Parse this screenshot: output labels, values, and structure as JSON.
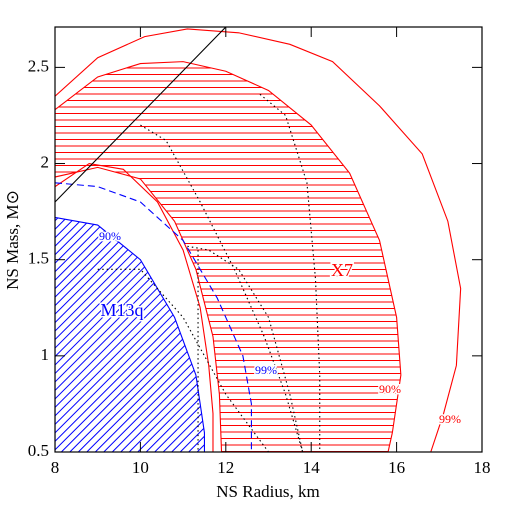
{
  "chart_data": {
    "type": "line",
    "xlabel": "NS Radius, km",
    "ylabel": "NS Mass, M⊙",
    "xlim": [
      8,
      18
    ],
    "ylim": [
      0.5,
      2.71
    ],
    "xticks": [
      8,
      10,
      12,
      14,
      16,
      18
    ],
    "yticks": [
      0.5,
      1,
      1.5,
      2,
      2.5
    ],
    "series": [
      {
        "color": "#ff0000",
        "dash": "solid",
        "hatch": "horizontal",
        "closed": true,
        "x": [
          8,
          9,
          10,
          11,
          12,
          13,
          14,
          14.9,
          15.6,
          16.0,
          16.1,
          15.9,
          15.8,
          11.9,
          11.85,
          11.7,
          11.3,
          10.8,
          10,
          9,
          8
        ],
        "y": [
          2.28,
          2.45,
          2.52,
          2.53,
          2.48,
          2.38,
          2.2,
          1.95,
          1.6,
          1.2,
          0.9,
          0.6,
          0.5,
          0.5,
          0.8,
          1.1,
          1.45,
          1.7,
          1.92,
          1.98,
          1.93
        ]
      },
      {
        "color": "#ff0000",
        "dash": "solid",
        "hatch": "none",
        "closed": false,
        "x": [
          8,
          9,
          10.1,
          11.1,
          12.3,
          13.5,
          14.5,
          15.6,
          16.6,
          17.2,
          17.5,
          17.4,
          17.1,
          16.8
        ],
        "y": [
          2.35,
          2.55,
          2.66,
          2.7,
          2.68,
          2.62,
          2.53,
          2.3,
          2.05,
          1.7,
          1.35,
          0.95,
          0.7,
          0.5
        ]
      },
      {
        "color": "#ff0000",
        "dash": "solid",
        "hatch": "none",
        "closed": false,
        "x": [
          8,
          8.8,
          9.6,
          10.4,
          11.0,
          11.4,
          11.6,
          11.7,
          11.7
        ],
        "y": [
          1.88,
          2.0,
          1.97,
          1.8,
          1.55,
          1.25,
          0.95,
          0.7,
          0.5
        ]
      },
      {
        "color": "#0000ff",
        "dash": "solid",
        "hatch": "diagonal",
        "closed": true,
        "x": [
          8,
          9,
          10,
          10.8,
          11.3,
          11.5,
          11.5,
          8
        ],
        "y": [
          1.72,
          1.68,
          1.5,
          1.2,
          0.9,
          0.6,
          0.5,
          0.5
        ]
      },
      {
        "color": "#0000ff",
        "dash": "dashed",
        "hatch": "none",
        "closed": false,
        "x": [
          8,
          9,
          10,
          11,
          11.8,
          12.4,
          12.6,
          12.6
        ],
        "y": [
          1.9,
          1.88,
          1.8,
          1.6,
          1.3,
          1.0,
          0.75,
          0.5
        ]
      },
      {
        "color": "#000000",
        "dash": "solid",
        "hatch": "none",
        "closed": false,
        "x": [
          8,
          12
        ],
        "y": [
          1.8,
          2.71
        ]
      },
      {
        "color": "#000000",
        "dash": "dotted",
        "hatch": "none",
        "closed": false,
        "x": [
          11.1,
          11.6,
          12.3,
          13.0,
          13.5,
          13.8
        ],
        "y": [
          1.57,
          1.55,
          1.45,
          1.2,
          0.8,
          0.5
        ]
      },
      {
        "color": "#000000",
        "dash": "dotted",
        "hatch": "none",
        "closed": false,
        "x": [
          12.8,
          13.4,
          13.9,
          14.1,
          14.2,
          14.2
        ],
        "y": [
          2.36,
          2.25,
          1.9,
          1.4,
          0.9,
          0.5
        ]
      },
      {
        "color": "#000000",
        "dash": "dotted",
        "hatch": "none",
        "closed": false,
        "x": [
          10.0,
          10.6,
          11.4,
          12.2,
          12.9,
          13.4,
          13.8
        ],
        "y": [
          2.2,
          2.12,
          1.8,
          1.45,
          1.1,
          0.8,
          0.5
        ]
      },
      {
        "color": "#000000",
        "dash": "dotted",
        "hatch": "none",
        "closed": false,
        "x": [
          9,
          10,
          11,
          12,
          13
        ],
        "y": [
          1.45,
          1.45,
          1.2,
          0.8,
          0.5
        ]
      },
      {
        "color": "#000000",
        "dash": "dotted",
        "hatch": "none",
        "closed": false,
        "x": [
          11.35,
          11.35
        ],
        "y": [
          1.55,
          0.5
        ]
      }
    ],
    "annotations": [
      {
        "text": "X7",
        "color": "#ff0000"
      },
      {
        "text": "M13q",
        "color": "#0000ff"
      },
      {
        "text": "90%",
        "color": "#0000ff"
      },
      {
        "text": "99%",
        "color": "#0000ff"
      },
      {
        "text": "90%",
        "color": "#ff0000"
      },
      {
        "text": "99%",
        "color": "#ff0000"
      }
    ]
  }
}
